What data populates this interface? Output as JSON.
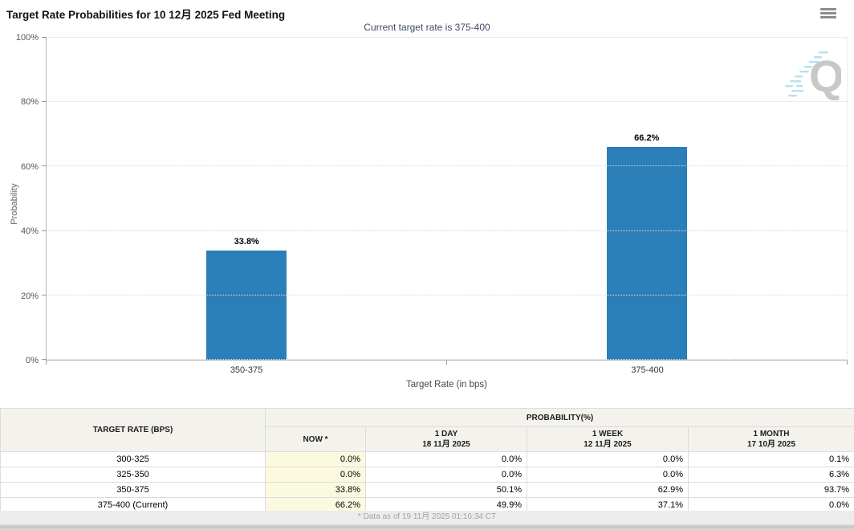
{
  "header": {
    "title": "Target Rate Probabilities for 10 12月 2025 Fed Meeting"
  },
  "subtitle": "Current target rate is 375-400",
  "chart_data": {
    "type": "bar",
    "categories": [
      "350-375",
      "375-400"
    ],
    "values": [
      33.8,
      66.2
    ],
    "value_labels": [
      "33.8%",
      "66.2%"
    ],
    "title": "Target Rate Probabilities for 10 12月 2025 Fed Meeting",
    "xlabel": "Target Rate (in bps)",
    "ylabel": "Probability",
    "ylim": [
      0,
      100
    ],
    "yticks": [
      0,
      20,
      40,
      60,
      80,
      100
    ],
    "ytick_suffix": "%",
    "grid": "horizontal-dotted",
    "legend": "none",
    "bar_color": "#2b7fb8"
  },
  "watermark": {
    "letter": "Q"
  },
  "table": {
    "col1_header": "TARGET RATE (BPS)",
    "group_header": "PROBABILITY(%)",
    "columns": [
      {
        "line1": "NOW *",
        "line2": ""
      },
      {
        "line1": "1 DAY",
        "line2": "18 11月 2025"
      },
      {
        "line1": "1 WEEK",
        "line2": "12 11月 2025"
      },
      {
        "line1": "1 MONTH",
        "line2": "17 10月 2025"
      }
    ],
    "rows": [
      {
        "rate": "300-325",
        "now": "0.0%",
        "day": "0.0%",
        "week": "0.0%",
        "month": "0.1%"
      },
      {
        "rate": "325-350",
        "now": "0.0%",
        "day": "0.0%",
        "week": "0.0%",
        "month": "6.3%"
      },
      {
        "rate": "350-375",
        "now": "33.8%",
        "day": "50.1%",
        "week": "62.9%",
        "month": "93.7%"
      },
      {
        "rate": "375-400 (Current)",
        "now": "66.2%",
        "day": "49.9%",
        "week": "37.1%",
        "month": "0.0%"
      }
    ]
  },
  "footer": {
    "note": "* Data as of 19 11月 2025 01:16:34 CT"
  },
  "colors": {
    "bar": "#2b7fb8",
    "now_column_bg": "#fbfae1",
    "subtitle_text": "#3f4a66",
    "table_header_bg": "#f4f2ec"
  }
}
